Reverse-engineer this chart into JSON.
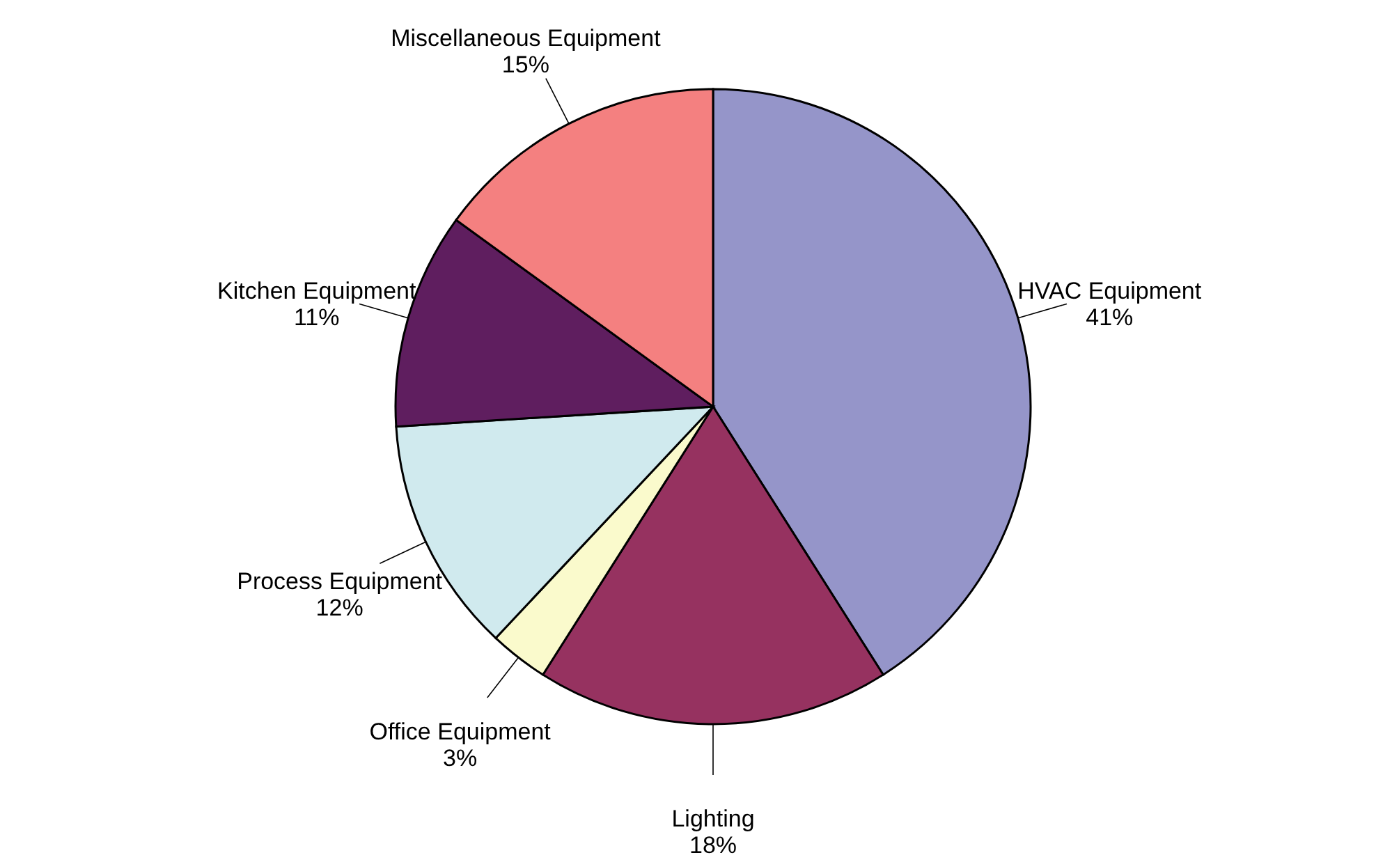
{
  "chart_data": {
    "type": "pie",
    "categories": [
      "HVAC Equipment",
      "Lighting",
      "Office Equipment",
      "Process Equipment",
      "Kitchen Equipment",
      "Miscellaneous Equipment"
    ],
    "values": [
      41,
      18,
      3,
      12,
      11,
      15
    ],
    "colors": [
      "#9595c9",
      "#963260",
      "#fafacc",
      "#d0eaee",
      "#5f1e5f",
      "#f48080"
    ],
    "value_labels": [
      "41%",
      "18%",
      "3%",
      "12%",
      "11%",
      "15%"
    ]
  }
}
